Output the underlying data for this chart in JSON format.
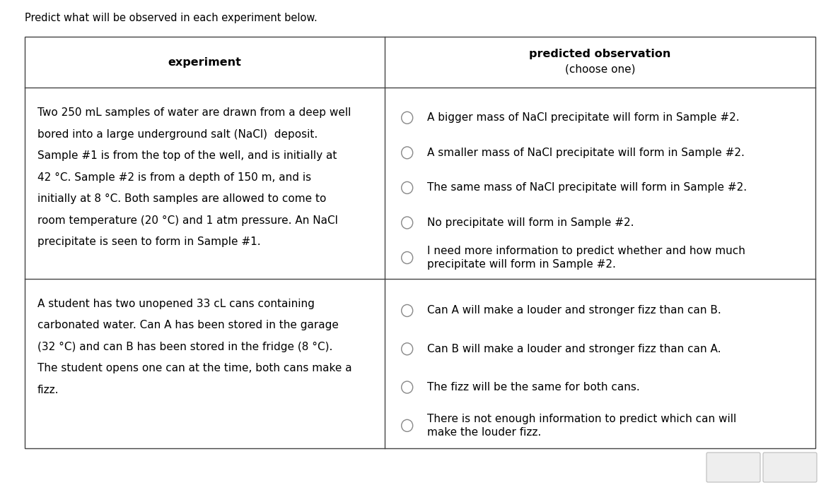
{
  "title": "Predict what will be observed in each experiment below.",
  "title_fontsize": 10.5,
  "header_col1": "experiment",
  "background_color": "#ffffff",
  "table_border_color": "#444444",
  "text_color": "#000000",
  "row1_left_lines": [
    "Two 250 mL samples of water are drawn from a deep well",
    "bored into a large underground salt (NaCl)  deposit.",
    "Sample #1 is from the top of the well, and is initially at",
    "42 °C. Sample #2 is from a depth of 150 m, and is",
    "initially at 8 °C. Both samples are allowed to come to",
    "room temperature (20 °C) and 1 atm pressure. An NaCl",
    "precipitate is seen to form in Sample #1."
  ],
  "row1_options": [
    "A bigger mass of NaCl precipitate will form in Sample #2.",
    "A smaller mass of NaCl precipitate will form in Sample #2.",
    "The same mass of NaCl precipitate will form in Sample #2.",
    "No precipitate will form in Sample #2.",
    "I need more information to predict whether and how much\nprecipitate will form in Sample #2."
  ],
  "row2_left_lines": [
    "A student has two unopened 33 cL cans containing",
    "carbonated water. Can A has been stored in the garage",
    "(32 °C) and can B has been stored in the fridge (8 °C).",
    "The student opens one can at the time, both cans make a",
    "fizz."
  ],
  "row2_options": [
    "Can A will make a louder and stronger fizz than can B.",
    "Can B will make a louder and stronger fizz than can A.",
    "The fizz will be the same for both cans.",
    "There is not enough information to predict which can will\nmake the louder fizz."
  ],
  "font_size_body": 11.0,
  "font_size_header": 11.5,
  "fig_width": 11.68,
  "fig_height": 6.87,
  "dpi": 100
}
